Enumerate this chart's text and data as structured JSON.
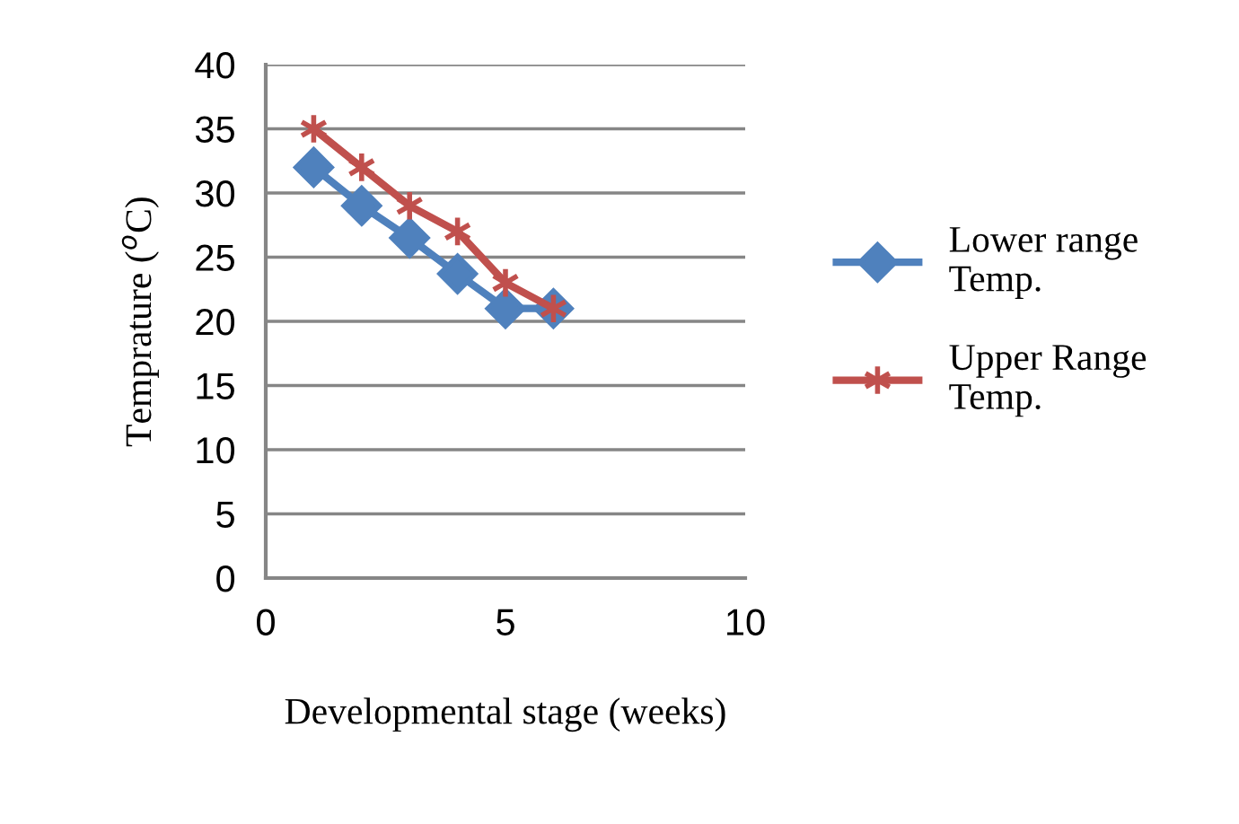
{
  "chart_data": {
    "type": "line",
    "xlabel": "Developmental stage (weeks)",
    "ylabel": "Temprature ($^{o}$C)",
    "x": [
      1,
      2,
      3,
      4,
      5,
      6
    ],
    "series": [
      {
        "name": "Lower range\nTemp.",
        "color": "#4f81bd",
        "marker": "diamond",
        "values": [
          32,
          29,
          26.5,
          23.7,
          21,
          21
        ]
      },
      {
        "name": "Upper Range\nTemp.",
        "color": "#c0504d",
        "marker": "cross",
        "values": [
          35,
          32,
          29,
          27,
          23,
          21
        ]
      }
    ],
    "xlim": [
      0,
      10
    ],
    "xticks": [
      0,
      5,
      10
    ],
    "ylim": [
      0,
      40
    ],
    "yticks": [
      0,
      5,
      10,
      15,
      20,
      25,
      30,
      35,
      40
    ],
    "grid": "y",
    "legend": "right"
  }
}
